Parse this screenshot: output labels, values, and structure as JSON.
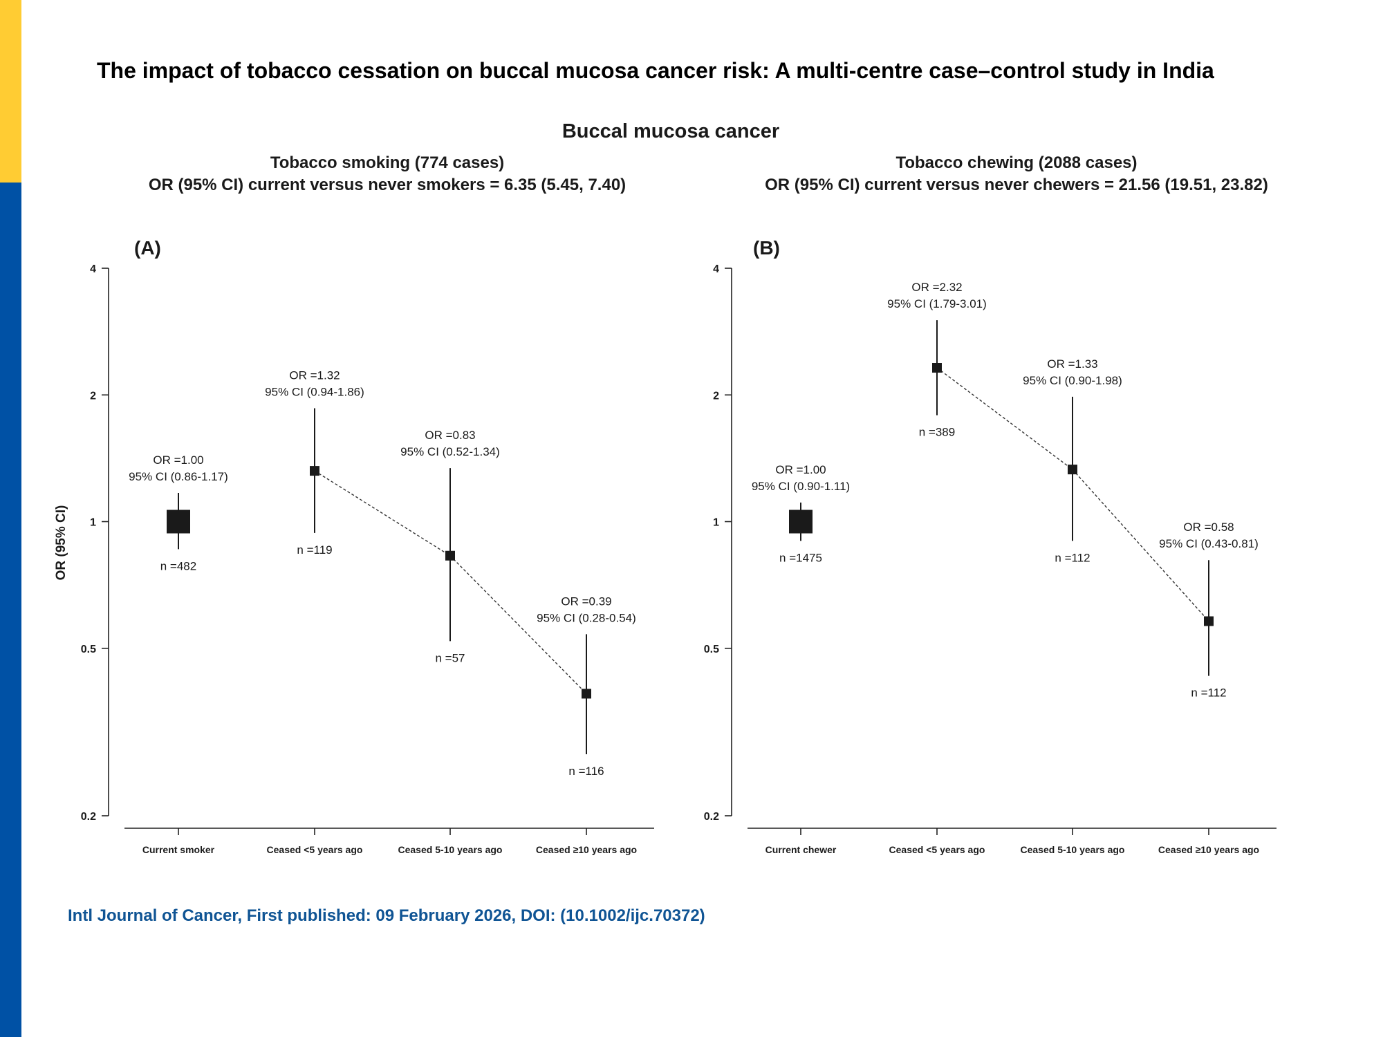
{
  "slide": {
    "title": "The impact of tobacco cessation on buccal mucosa cancer risk: A multi-centre case–control study in India",
    "citation": "Intl Journal of Cancer, First published: 09 February 2026, DOI: (10.1002/ijc.70372)",
    "accent_colors": {
      "yellow": "#FFCC33",
      "blue": "#0051A5",
      "citation_text": "#0F5494"
    }
  },
  "figure_title": "Buccal mucosa cancer",
  "chart_data": [
    {
      "type": "scatter",
      "panel_label": "(A)",
      "heading_line1": "Tobacco smoking (774 cases)",
      "heading_line2": "OR (95% CI) current versus never smokers = 6.35 (5.45, 7.40)",
      "ylabel": "OR (95% CI)",
      "yscale": "log",
      "ylim": [
        0.2,
        4
      ],
      "yticks": [
        0.2,
        0.5,
        1,
        2,
        4
      ],
      "ytick_labels": [
        "0.2",
        "0.5",
        "1",
        "2",
        "4"
      ],
      "categories": [
        "Current smoker",
        "Ceased <5 years ago",
        "Ceased 5-10 years ago",
        "Ceased ≥10 years ago"
      ],
      "points": [
        {
          "or": 1.0,
          "lo": 0.86,
          "hi": 1.17,
          "n": 482,
          "or_label": "OR =1.00",
          "ci_label": "95% CI (0.86-1.17)",
          "n_label": "n =482"
        },
        {
          "or": 1.32,
          "lo": 0.94,
          "hi": 1.86,
          "n": 119,
          "or_label": "OR =1.32",
          "ci_label": "95% CI (0.94-1.86)",
          "n_label": "n =119"
        },
        {
          "or": 0.83,
          "lo": 0.52,
          "hi": 1.34,
          "n": 57,
          "or_label": "OR =0.83",
          "ci_label": "95% CI (0.52-1.34)",
          "n_label": "n =57"
        },
        {
          "or": 0.39,
          "lo": 0.28,
          "hi": 0.54,
          "n": 116,
          "or_label": "OR =0.39",
          "ci_label": "95% CI (0.28-0.54)",
          "n_label": "n =116"
        }
      ],
      "trend_line": "dashed, from Ceased <5 years ago to Ceased ≥10 years ago"
    },
    {
      "type": "scatter",
      "panel_label": "(B)",
      "heading_line1": "Tobacco chewing (2088 cases)",
      "heading_line2": "OR (95% CI) current versus never chewers = 21.56 (19.51, 23.82)",
      "ylabel": "",
      "yscale": "log",
      "ylim": [
        0.2,
        4
      ],
      "yticks": [
        0.2,
        0.5,
        1,
        2,
        4
      ],
      "ytick_labels": [
        "0.2",
        "0.5",
        "1",
        "2",
        "4"
      ],
      "categories": [
        "Current chewer",
        "Ceased <5 years ago",
        "Ceased 5-10 years ago",
        "Ceased ≥10 years ago"
      ],
      "points": [
        {
          "or": 1.0,
          "lo": 0.9,
          "hi": 1.11,
          "n": 1475,
          "or_label": "OR =1.00",
          "ci_label": "95% CI (0.90-1.11)",
          "n_label": "n =1475"
        },
        {
          "or": 2.32,
          "lo": 1.79,
          "hi": 3.01,
          "n": 389,
          "or_label": "OR =2.32",
          "ci_label": "95% CI (1.79-3.01)",
          "n_label": "n =389"
        },
        {
          "or": 1.33,
          "lo": 0.9,
          "hi": 1.98,
          "n": 112,
          "or_label": "OR =1.33",
          "ci_label": "95% CI (0.90-1.98)",
          "n_label": "n =112"
        },
        {
          "or": 0.58,
          "lo": 0.43,
          "hi": 0.81,
          "n": 112,
          "or_label": "OR =0.58",
          "ci_label": "95% CI (0.43-0.81)",
          "n_label": "n =112"
        }
      ],
      "trend_line": "dashed, from Ceased <5 years ago to Ceased ≥10 years ago"
    }
  ]
}
